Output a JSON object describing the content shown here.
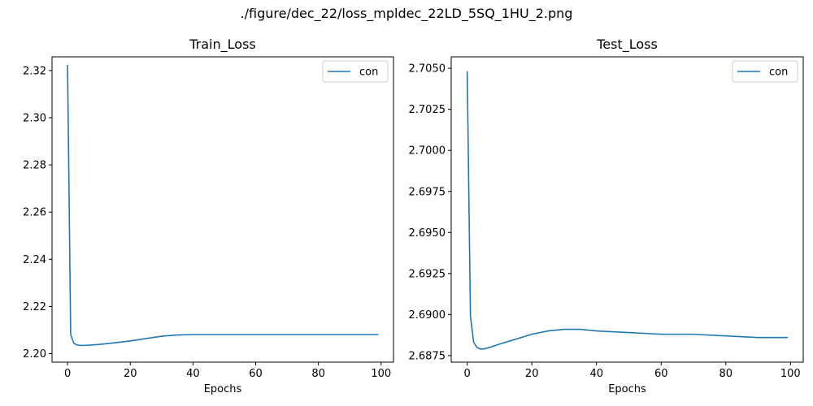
{
  "figure_title": "./figure/dec_22/loss_mpldec_22LD_5SQ_1HU_2.png",
  "colors": {
    "series": "#1f77b4",
    "axis": "#000000",
    "legend_border": "#cccccc"
  },
  "chart_data": [
    {
      "type": "line",
      "title": "Train_Loss",
      "xlabel": "Epochs",
      "ylabel": "",
      "xlim": [
        -4.95,
        103.95
      ],
      "ylim": [
        2.1964,
        2.3258
      ],
      "xticks": [
        0,
        20,
        40,
        60,
        80,
        100
      ],
      "xtick_labels": [
        "0",
        "20",
        "40",
        "60",
        "80",
        "100"
      ],
      "yticks": [
        2.2,
        2.22,
        2.24,
        2.26,
        2.28,
        2.3,
        2.32
      ],
      "ytick_labels": [
        "2.20",
        "2.22",
        "2.24",
        "2.26",
        "2.28",
        "2.30",
        "2.32"
      ],
      "legend": [
        "con"
      ],
      "legend_position": "upper right",
      "series": [
        {
          "name": "con",
          "x": [
            0,
            1,
            2,
            3,
            4,
            5,
            7,
            10,
            15,
            20,
            25,
            30,
            35,
            40,
            50,
            60,
            70,
            80,
            90,
            99
          ],
          "y": [
            2.3222,
            2.2081,
            2.2044,
            2.2037,
            2.2035,
            2.2035,
            2.2036,
            2.2039,
            2.2046,
            2.2054,
            2.2064,
            2.2074,
            2.2079,
            2.2081,
            2.2081,
            2.2081,
            2.2081,
            2.2081,
            2.2081,
            2.2081
          ]
        }
      ]
    },
    {
      "type": "line",
      "title": "Test_Loss",
      "xlabel": "Epochs",
      "ylabel": "",
      "xlim": [
        -4.95,
        103.95
      ],
      "ylim": [
        2.6871,
        2.7057
      ],
      "xticks": [
        0,
        20,
        40,
        60,
        80,
        100
      ],
      "xtick_labels": [
        "0",
        "20",
        "40",
        "60",
        "80",
        "100"
      ],
      "yticks": [
        2.6875,
        2.69,
        2.6925,
        2.695,
        2.6975,
        2.7,
        2.7025,
        2.705
      ],
      "ytick_labels": [
        "2.6875",
        "2.6900",
        "2.6925",
        "2.6950",
        "2.6975",
        "2.7000",
        "2.7025",
        "2.7050"
      ],
      "legend": [
        "con"
      ],
      "legend_position": "upper right",
      "series": [
        {
          "name": "con",
          "x": [
            0,
            1,
            2,
            3,
            4,
            5,
            7,
            10,
            15,
            20,
            25,
            30,
            33,
            35,
            40,
            50,
            60,
            70,
            80,
            90,
            99
          ],
          "y": [
            2.7048,
            2.6899,
            2.6883,
            2.688,
            2.6879,
            2.6879,
            2.688,
            2.6882,
            2.6885,
            2.6888,
            2.689,
            2.6891,
            2.6891,
            2.6891,
            2.689,
            2.6889,
            2.6888,
            2.6888,
            2.6887,
            2.6886,
            2.6886
          ]
        }
      ]
    }
  ]
}
